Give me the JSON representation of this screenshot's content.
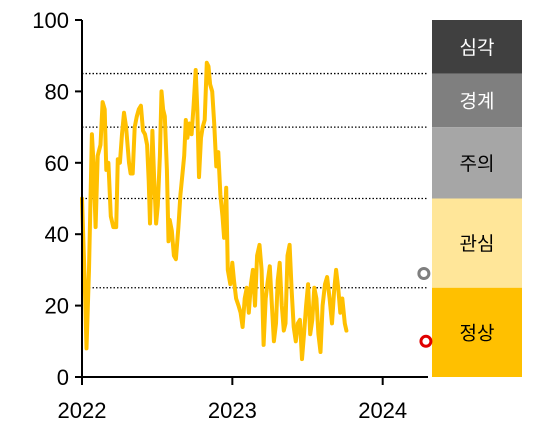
{
  "chart_data": {
    "type": "line",
    "title": "",
    "xlabel": "",
    "ylabel": "",
    "ylim": [
      0,
      100
    ],
    "xlim": [
      "2022-01-01",
      "2024-04-20"
    ],
    "y_ticks": [
      "0",
      "20",
      "40",
      "60",
      "80",
      "100"
    ],
    "x_ticks": [
      {
        "label": "2022",
        "date": "2022-01-01"
      },
      {
        "label": "2023",
        "date": "2023-01-01"
      },
      {
        "label": "2024",
        "date": "2024-01-01"
      }
    ],
    "thresholds": [
      25,
      50,
      70,
      85
    ],
    "grid": "dotted lines at thresholds",
    "legend": "none",
    "series": [
      {
        "color": "#FFC000",
        "points": [
          [
            "2022-01-01",
            50
          ],
          [
            "2022-01-08",
            25
          ],
          [
            "2022-01-12",
            8
          ],
          [
            "2022-01-18",
            30
          ],
          [
            "2022-01-25",
            68
          ],
          [
            "2022-01-29",
            60
          ],
          [
            "2022-02-03",
            42
          ],
          [
            "2022-02-08",
            62
          ],
          [
            "2022-02-15",
            65
          ],
          [
            "2022-02-20",
            77
          ],
          [
            "2022-02-25",
            75
          ],
          [
            "2022-03-01",
            58
          ],
          [
            "2022-03-06",
            60
          ],
          [
            "2022-03-12",
            45
          ],
          [
            "2022-03-18",
            42
          ],
          [
            "2022-03-25",
            42
          ],
          [
            "2022-03-29",
            61
          ],
          [
            "2022-04-03",
            60
          ],
          [
            "2022-04-08",
            68
          ],
          [
            "2022-04-13",
            74
          ],
          [
            "2022-04-18",
            70
          ],
          [
            "2022-04-25",
            60
          ],
          [
            "2022-04-29",
            57
          ],
          [
            "2022-05-04",
            57
          ],
          [
            "2022-05-09",
            70
          ],
          [
            "2022-05-14",
            73
          ],
          [
            "2022-05-19",
            75
          ],
          [
            "2022-05-24",
            76
          ],
          [
            "2022-05-29",
            69
          ],
          [
            "2022-06-03",
            68
          ],
          [
            "2022-06-08",
            65
          ],
          [
            "2022-06-12",
            55
          ],
          [
            "2022-06-15",
            43
          ],
          [
            "2022-06-18",
            55
          ],
          [
            "2022-06-21",
            69
          ],
          [
            "2022-06-25",
            56
          ],
          [
            "2022-06-30",
            43
          ],
          [
            "2022-07-04",
            48
          ],
          [
            "2022-07-09",
            62
          ],
          [
            "2022-07-13",
            80
          ],
          [
            "2022-07-17",
            75
          ],
          [
            "2022-07-21",
            73
          ],
          [
            "2022-07-26",
            58
          ],
          [
            "2022-07-30",
            38
          ],
          [
            "2022-08-02",
            44
          ],
          [
            "2022-08-07",
            41
          ],
          [
            "2022-08-12",
            34
          ],
          [
            "2022-08-17",
            33
          ],
          [
            "2022-08-23",
            42
          ],
          [
            "2022-08-28",
            51
          ],
          [
            "2022-09-02",
            57
          ],
          [
            "2022-09-06",
            62
          ],
          [
            "2022-09-10",
            72
          ],
          [
            "2022-09-14",
            67
          ],
          [
            "2022-09-19",
            71
          ],
          [
            "2022-09-24",
            68
          ],
          [
            "2022-09-29",
            76
          ],
          [
            "2022-10-04",
            86
          ],
          [
            "2022-10-08",
            75
          ],
          [
            "2022-10-12",
            56
          ],
          [
            "2022-10-17",
            67
          ],
          [
            "2022-10-21",
            70
          ],
          [
            "2022-10-26",
            72
          ],
          [
            "2022-10-31",
            88
          ],
          [
            "2022-11-04",
            87
          ],
          [
            "2022-11-08",
            82
          ],
          [
            "2022-11-13",
            80
          ],
          [
            "2022-11-18",
            71
          ],
          [
            "2022-11-23",
            59
          ],
          [
            "2022-11-28",
            63
          ],
          [
            "2022-12-03",
            51
          ],
          [
            "2022-12-08",
            45
          ],
          [
            "2022-12-12",
            39
          ],
          [
            "2022-12-17",
            53
          ],
          [
            "2022-12-21",
            30
          ],
          [
            "2022-12-27",
            26
          ],
          [
            "2023-01-01",
            32
          ],
          [
            "2023-01-05",
            27
          ],
          [
            "2023-01-10",
            22
          ],
          [
            "2023-01-16",
            20
          ],
          [
            "2023-01-21",
            18
          ],
          [
            "2023-01-26",
            14
          ],
          [
            "2023-01-31",
            22
          ],
          [
            "2023-02-05",
            25
          ],
          [
            "2023-02-10",
            18
          ],
          [
            "2023-02-15",
            26
          ],
          [
            "2023-02-20",
            30
          ],
          [
            "2023-02-25",
            20
          ],
          [
            "2023-03-02",
            34
          ],
          [
            "2023-03-08",
            37
          ],
          [
            "2023-03-13",
            30
          ],
          [
            "2023-03-18",
            9
          ],
          [
            "2023-03-23",
            22
          ],
          [
            "2023-03-28",
            27
          ],
          [
            "2023-04-02",
            31
          ],
          [
            "2023-04-07",
            20
          ],
          [
            "2023-04-12",
            10
          ],
          [
            "2023-04-17",
            15
          ],
          [
            "2023-04-21",
            27
          ],
          [
            "2023-04-26",
            32
          ],
          [
            "2023-05-01",
            20
          ],
          [
            "2023-05-06",
            13
          ],
          [
            "2023-05-10",
            15
          ],
          [
            "2023-05-15",
            34
          ],
          [
            "2023-05-20",
            37
          ],
          [
            "2023-05-25",
            24
          ],
          [
            "2023-05-30",
            14
          ],
          [
            "2023-06-04",
            10
          ],
          [
            "2023-06-09",
            15
          ],
          [
            "2023-06-14",
            16
          ],
          [
            "2023-06-19",
            5
          ],
          [
            "2023-06-24",
            12
          ],
          [
            "2023-06-29",
            20
          ],
          [
            "2023-07-04",
            26
          ],
          [
            "2023-07-09",
            12
          ],
          [
            "2023-07-14",
            16
          ],
          [
            "2023-07-19",
            25
          ],
          [
            "2023-07-24",
            22
          ],
          [
            "2023-07-29",
            12
          ],
          [
            "2023-08-03",
            7
          ],
          [
            "2023-08-08",
            20
          ],
          [
            "2023-08-14",
            26
          ],
          [
            "2023-08-19",
            28
          ],
          [
            "2023-08-25",
            22
          ],
          [
            "2023-08-31",
            15
          ],
          [
            "2023-09-05",
            24
          ],
          [
            "2023-09-10",
            30
          ],
          [
            "2023-09-15",
            25
          ],
          [
            "2023-09-20",
            18
          ],
          [
            "2023-09-25",
            22
          ],
          [
            "2023-10-01",
            15
          ],
          [
            "2023-10-05",
            13
          ]
        ]
      }
    ],
    "markers": [
      {
        "date": "2024-04-10",
        "value": 29,
        "color": "#7F7F7F"
      },
      {
        "date": "2024-04-15",
        "value": 10,
        "color": "#E00000"
      }
    ],
    "bands": [
      {
        "label": "심각",
        "from": 85,
        "to": 100,
        "color": "#404040",
        "text_color": "#FFFFFF"
      },
      {
        "label": "경계",
        "from": 70,
        "to": 85,
        "color": "#7F7F7F",
        "text_color": "#FFFFFF"
      },
      {
        "label": "주의",
        "from": 50,
        "to": 70,
        "color": "#A6A6A6",
        "text_color": "#000000"
      },
      {
        "label": "관심",
        "from": 25,
        "to": 50,
        "color": "#FFE699",
        "text_color": "#000000"
      },
      {
        "label": "정상",
        "from": 0,
        "to": 25,
        "color": "#FFC000",
        "text_color": "#000000"
      }
    ]
  }
}
